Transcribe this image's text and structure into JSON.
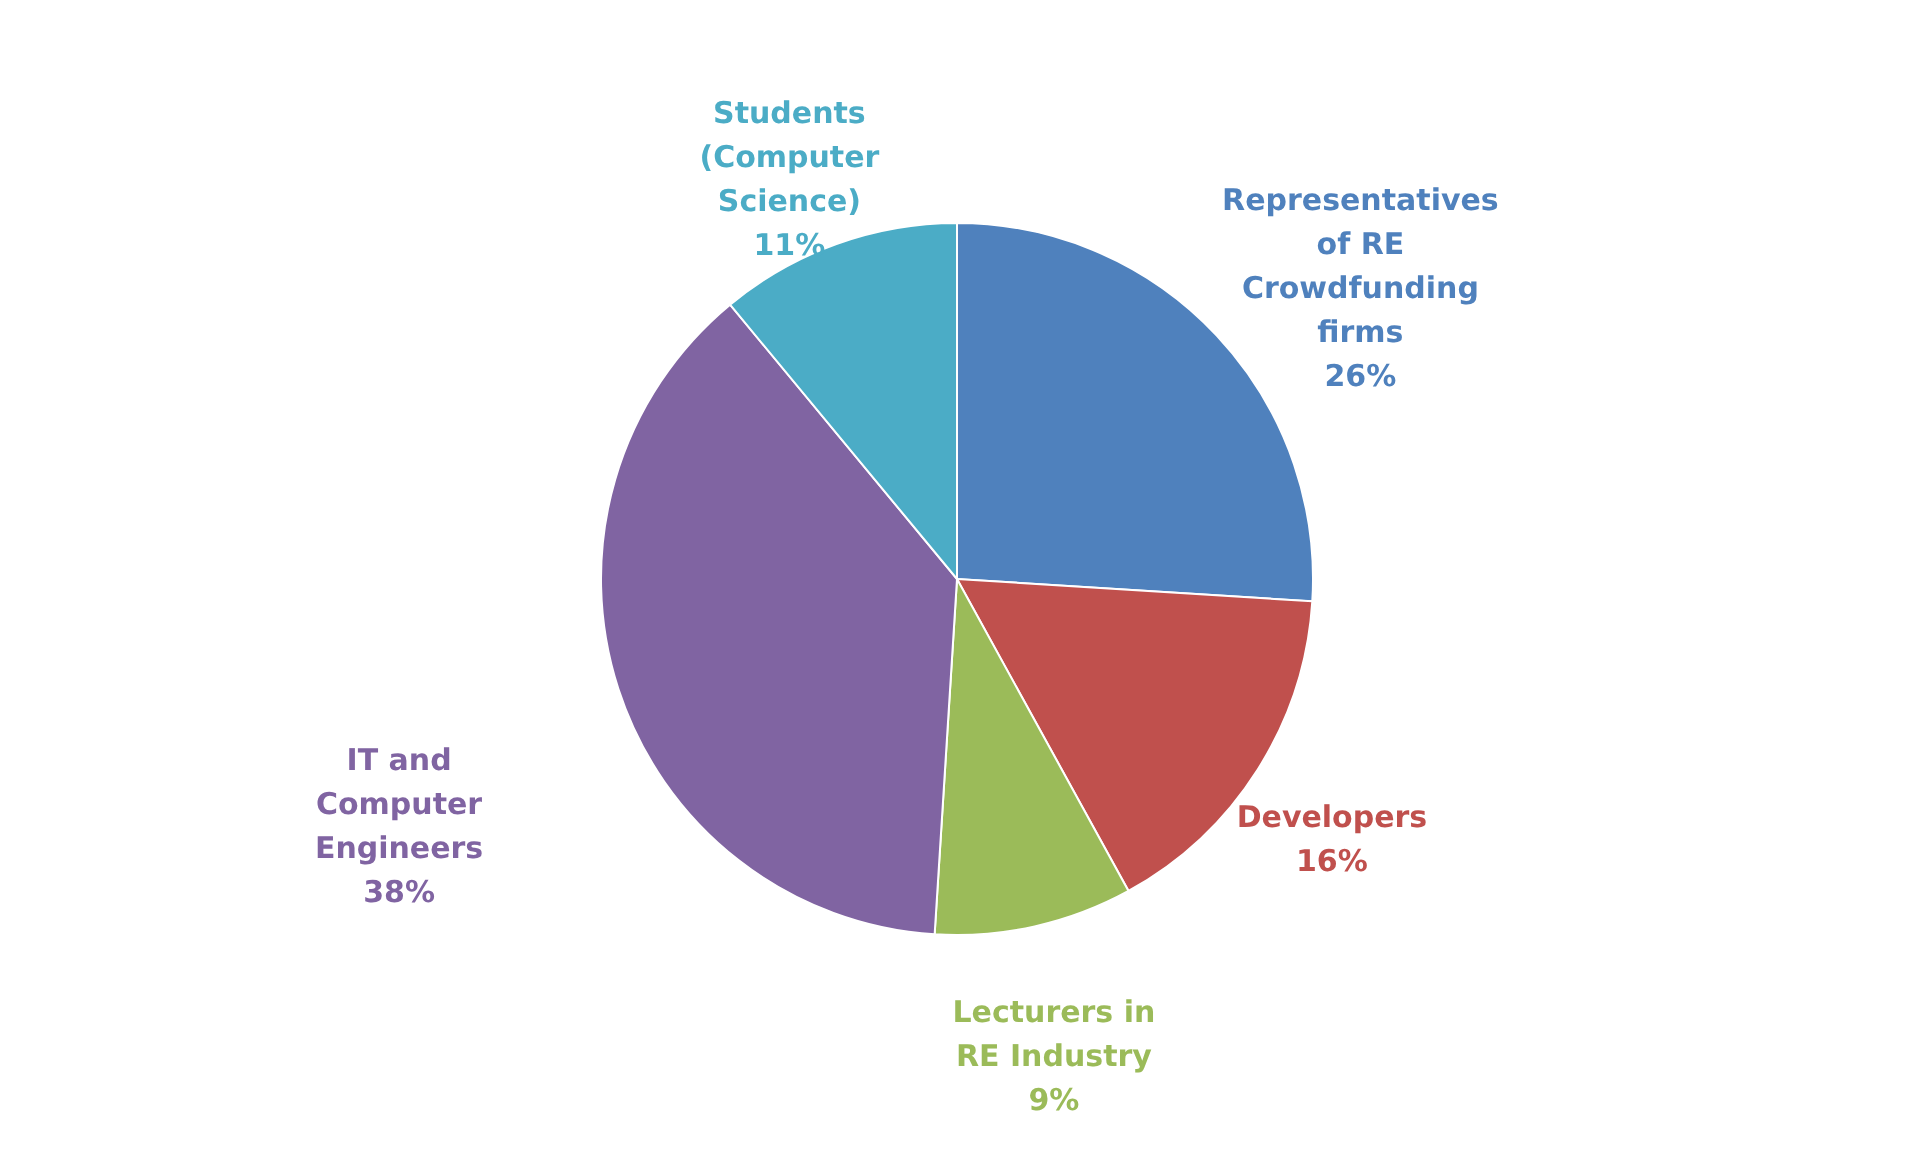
{
  "chart_data": {
    "type": "pie",
    "categories": [
      "Representatives of RE Crowdfunding firms",
      "Developers",
      "Lecturers in RE Industry",
      "IT and Computer Engineers",
      "Students (Computer Science)"
    ],
    "values": [
      26,
      16,
      9,
      38,
      11
    ],
    "value_labels": [
      "26%",
      "16%",
      "9%",
      "38%",
      "11%"
    ],
    "colors": [
      "#4f81bd",
      "#c0504d",
      "#9bbb59",
      "#8064a2",
      "#4bacc6"
    ],
    "legend": false
  }
}
